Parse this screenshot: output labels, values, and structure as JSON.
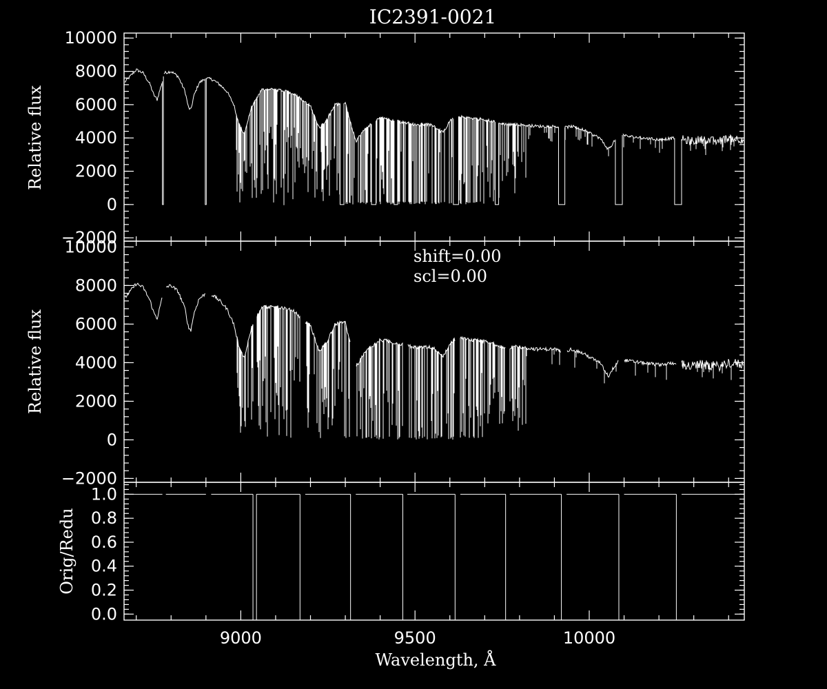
{
  "chart_data": {
    "title": "IC2391-0021",
    "xlabel": "Wavelength, Å",
    "x_range": [
      8665,
      10445
    ],
    "x_ticks": [
      9000,
      9500,
      10000
    ],
    "x_tick_labels": [
      "9000",
      "9500",
      "10000"
    ],
    "panels": [
      {
        "type": "line",
        "ylabel": "Relative flux",
        "ylim": [
          -2200,
          10300
        ],
        "y_ticks": [
          -2000,
          0,
          2000,
          4000,
          6000,
          8000,
          10000
        ],
        "y_tick_labels": [
          "−2000",
          "0",
          "2000",
          "4000",
          "6000",
          "8000",
          "10000"
        ],
        "annotations": [],
        "series": [
          {
            "x": [
              8665,
              8700,
              8720,
              8740,
              8750,
              8760,
              8775,
              8780,
              8800,
              8820,
              8840,
              8850,
              8857,
              8865,
              8880,
              8900,
              8920,
              8940,
              8960,
              8980,
              8995,
              9010,
              9030,
              9060,
              9100,
              9150,
              9180,
              9200,
              9225,
              9245,
              9270,
              9300,
              9315,
              9330,
              9360,
              9400,
              9450,
              9500,
              9550,
              9580,
              9600,
              9620,
              9650,
              9700,
              9760,
              9800,
              9850,
              9900,
              9925,
              9950,
              9980,
              10000,
              10030,
              10055,
              10075,
              10090,
              10110,
              10150,
              10200,
              10250,
              10290,
              10320,
              10370,
              10400,
              10445
            ],
            "y": [
              7300,
              8100,
              7900,
              7200,
              6600,
              6300,
              7400,
              7900,
              8000,
              7700,
              6800,
              5800,
              5700,
              6500,
              7300,
              7600,
              7500,
              7200,
              6800,
              6000,
              4800,
              4200,
              5800,
              6900,
              6900,
              6700,
              6200,
              5900,
              4600,
              5000,
              6000,
              6100,
              4900,
              3800,
              4600,
              5200,
              5000,
              4800,
              4800,
              4300,
              5000,
              5300,
              5200,
              5100,
              4800,
              4800,
              4700,
              4700,
              4600,
              4700,
              4500,
              4300,
              4000,
              3300,
              3900,
              4200,
              4100,
              4000,
              3900,
              4000,
              3800,
              3900,
              3800,
              4000,
              3900
            ],
            "deep_absorption_band_x": [
              8985,
              9820
            ],
            "gaps_x": [
              [
                8775,
                8778
              ],
              [
                8898,
                8901
              ],
              [
                9285,
                9296
              ],
              [
                9375,
                9388
              ],
              [
                9440,
                9450
              ],
              [
                9610,
                9625
              ],
              [
                9730,
                9740
              ],
              [
                9912,
                9930
              ],
              [
                10075,
                10095
              ],
              [
                10245,
                10265
              ]
            ]
          }
        ]
      },
      {
        "type": "line",
        "ylabel": "Relative flux",
        "ylim": [
          -2200,
          10300
        ],
        "y_ticks": [
          -2000,
          0,
          2000,
          4000,
          6000,
          8000,
          10000
        ],
        "y_tick_labels": [
          "−2000",
          "0",
          "2000",
          "4000",
          "6000",
          "8000",
          "10000"
        ],
        "annotations": [
          "shift=0.00",
          "scl=0.00"
        ],
        "series": [
          {
            "x": [
              8665,
              8700,
              8720,
              8740,
              8750,
              8760,
              8775,
              8780,
              8800,
              8820,
              8840,
              8850,
              8857,
              8865,
              8880,
              8900,
              8920,
              8940,
              8960,
              8980,
              8995,
              9010,
              9030,
              9060,
              9100,
              9150,
              9180,
              9200,
              9225,
              9245,
              9270,
              9300,
              9315,
              9330,
              9360,
              9400,
              9450,
              9500,
              9550,
              9580,
              9600,
              9620,
              9650,
              9700,
              9760,
              9800,
              9850,
              9900,
              9925,
              9950,
              9980,
              10000,
              10030,
              10055,
              10075,
              10090,
              10110,
              10150,
              10200,
              10250,
              10290,
              10320,
              10370,
              10400,
              10445
            ],
            "y": [
              7300,
              8100,
              7900,
              7200,
              6600,
              6300,
              7400,
              7900,
              8000,
              7700,
              6800,
              5800,
              5700,
              6500,
              7300,
              7600,
              7500,
              7200,
              6800,
              6000,
              4800,
              4200,
              5800,
              6900,
              6900,
              6700,
              6200,
              5900,
              4600,
              5000,
              6000,
              6100,
              4900,
              3800,
              4600,
              5200,
              5000,
              4800,
              4800,
              4300,
              5000,
              5300,
              5200,
              5100,
              4800,
              4800,
              4700,
              4700,
              4600,
              4700,
              4500,
              4300,
              4000,
              3300,
              3900,
              4200,
              4100,
              4000,
              3900,
              4000,
              3800,
              3900,
              3800,
              4000,
              3900
            ],
            "deep_absorption_band_x": [
              8985,
              9820
            ],
            "gaps_x": [
              [
                8775,
                8785
              ],
              [
                8900,
                8915
              ],
              [
                9035,
                9045
              ],
              [
                9170,
                9185
              ],
              [
                9315,
                9330
              ],
              [
                9465,
                9478
              ],
              [
                9615,
                9630
              ],
              [
                9760,
                9772
              ],
              [
                9920,
                9935
              ],
              [
                10085,
                10100
              ],
              [
                10250,
                10265
              ]
            ]
          }
        ]
      },
      {
        "type": "line",
        "ylabel": "Orig/Redu",
        "ylim": [
          -0.05,
          1.1
        ],
        "y_ticks": [
          0.0,
          0.2,
          0.4,
          0.6,
          0.8,
          1.0
        ],
        "y_tick_labels": [
          "0.0",
          "0.2",
          "0.4",
          "0.6",
          "0.8",
          "1.0"
        ],
        "annotations": [],
        "series": [
          {
            "level": 1.0,
            "drops_x": [
              9035,
              9045,
              9170,
              9315,
              9465,
              9615,
              9760,
              9920,
              10085,
              10250
            ],
            "gaps_x": [
              [
                8775,
                8785
              ],
              [
                8900,
                8915
              ],
              [
                9035,
                9045
              ],
              [
                9170,
                9185
              ],
              [
                9315,
                9330
              ],
              [
                9465,
                9478
              ],
              [
                9615,
                9630
              ],
              [
                9760,
                9772
              ],
              [
                9920,
                9935
              ],
              [
                10085,
                10100
              ],
              [
                10250,
                10265
              ]
            ]
          }
        ]
      }
    ]
  }
}
